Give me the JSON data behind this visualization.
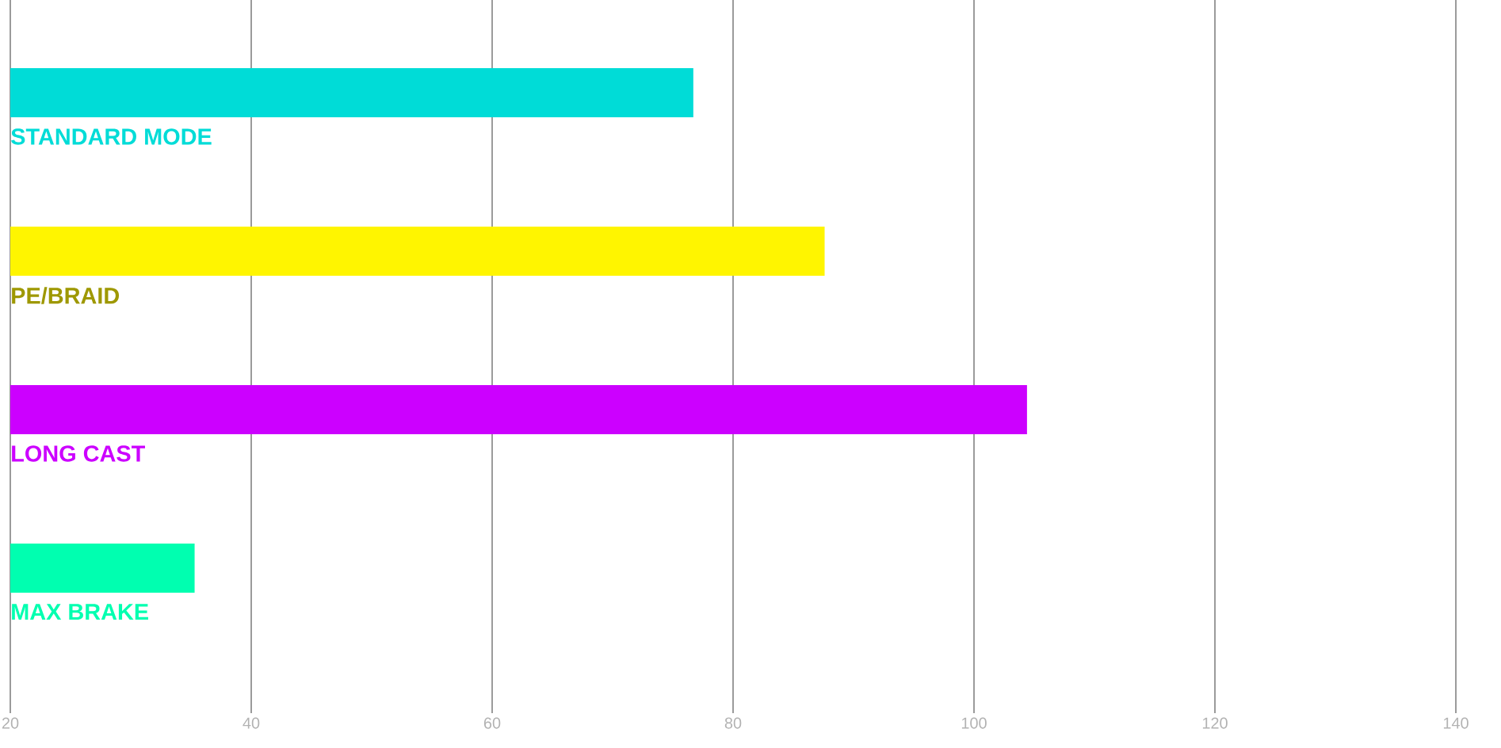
{
  "chart_data": {
    "type": "bar",
    "orientation": "horizontal",
    "categories": [
      "STANDARD MODE",
      "PE/BRAID",
      "LONG CAST",
      "MAX BRAKE"
    ],
    "values": [
      76.7,
      87.6,
      104.4,
      35.3
    ],
    "colors": [
      "#00dcd7",
      "#fff500",
      "#cc00ff",
      "#00ffb0"
    ],
    "xlim": [
      20,
      140
    ],
    "xticks": [
      20,
      40,
      60,
      80,
      100,
      120,
      140
    ],
    "grid": "x"
  }
}
